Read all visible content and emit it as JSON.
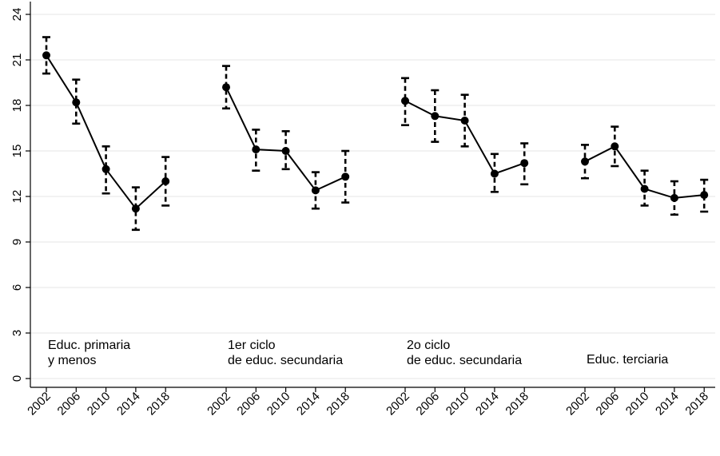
{
  "chart_data": {
    "type": "line",
    "title": "",
    "xlabel": "",
    "ylabel": "",
    "ylim": [
      0,
      24
    ],
    "yticks": [
      0,
      3,
      6,
      9,
      12,
      15,
      18,
      21,
      24
    ],
    "grid": true,
    "groups": [
      {
        "label_lines": [
          "Educ. primaria",
          "y menos"
        ],
        "x": [
          "2002",
          "2006",
          "2010",
          "2014",
          "2018"
        ],
        "values": [
          21.3,
          18.2,
          13.8,
          11.2,
          13.0
        ],
        "ci_low": [
          20.1,
          16.8,
          12.2,
          9.8,
          11.4
        ],
        "ci_high": [
          22.5,
          19.7,
          15.3,
          12.6,
          14.6
        ]
      },
      {
        "label_lines": [
          "1er ciclo",
          "de educ. secundaria"
        ],
        "x": [
          "2002",
          "2006",
          "2010",
          "2014",
          "2018"
        ],
        "values": [
          19.2,
          15.1,
          15.0,
          12.4,
          13.3
        ],
        "ci_low": [
          17.8,
          13.7,
          13.8,
          11.2,
          11.6
        ],
        "ci_high": [
          20.6,
          16.4,
          16.3,
          13.6,
          15.0
        ]
      },
      {
        "label_lines": [
          "2o ciclo",
          " de educ. secundaria"
        ],
        "x": [
          "2002",
          "2006",
          "2010",
          "2014",
          "2018"
        ],
        "values": [
          18.3,
          17.3,
          17.0,
          13.5,
          14.2
        ],
        "ci_low": [
          16.7,
          15.6,
          15.3,
          12.3,
          12.8
        ],
        "ci_high": [
          19.8,
          19.0,
          18.7,
          14.8,
          15.5
        ]
      },
      {
        "label_lines": [
          "Educ. terciaria"
        ],
        "x": [
          "2002",
          "2006",
          "2010",
          "2014",
          "2018"
        ],
        "values": [
          14.3,
          15.3,
          12.5,
          11.9,
          12.1
        ],
        "ci_low": [
          13.2,
          14.0,
          11.4,
          10.8,
          11.0
        ],
        "ci_high": [
          15.4,
          16.6,
          13.7,
          13.0,
          13.1
        ]
      }
    ]
  }
}
